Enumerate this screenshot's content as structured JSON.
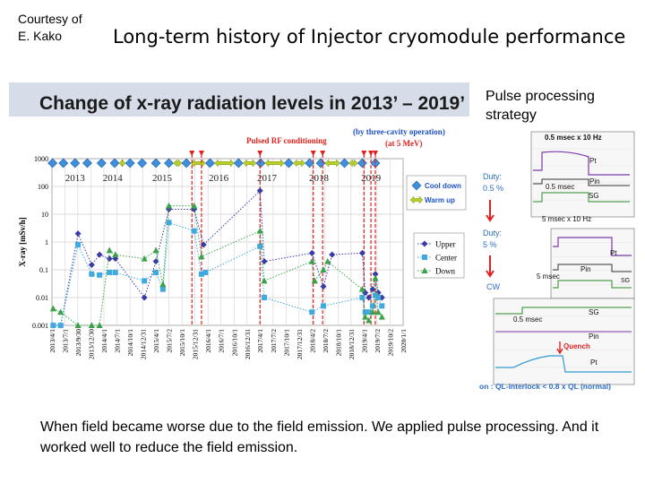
{
  "header": {
    "courtesy": "Courtesy of\nE. Kako",
    "title": "Long-term history of Injector cryomodule performance"
  },
  "side": {
    "title": "Pulse processing\nstrategy",
    "scope": {
      "top_label": "0.5 msec x 10 Hz",
      "duty1": "Duty:\n0.5 %",
      "duty2": "Duty:\n5 %",
      "cw": "CW",
      "pt": "Pt",
      "pin": "Pin",
      "sg": "SG",
      "half_msec": "0.5 msec",
      "five_msec_10hz": "5 msec x 10 Hz",
      "five_msec": "5 msec",
      "quench": "Quench",
      "footer": "on : QL-interlock < 0.8 x QL (normal)"
    }
  },
  "caption": "When field became worse due to the field emission. We applied pulse processing. And it worked well to reduce the field emission.",
  "colors": {
    "upper": "#3a3aa8",
    "center": "#3fa9e0",
    "down": "#3aa34a",
    "cooldown": "#3f8fdc",
    "warmup": "#b6cf29",
    "red": "#e0201c",
    "title_bar": "#d6dde8",
    "legend_text": "#1e50c8"
  },
  "chart_data": {
    "type": "scatter",
    "title": "Change of x-ray radiation levels in 2013’ – 2019’",
    "ylabel": "X-ray [mSv/h]",
    "yscale": "log",
    "ylim": [
      0.001,
      1000
    ],
    "xlim": [
      "2013-04-01",
      "2020-01-01"
    ],
    "grid": true,
    "y_ticks": [
      "1000",
      "100",
      "10",
      "1",
      "0.1",
      "0.01",
      "0.001"
    ],
    "x_ticks": [
      "2013/4/1",
      "2013/7/1",
      "2013/9/30",
      "2013/12/30",
      "2014/4/1",
      "2014/7/1",
      "2014/10/1",
      "2014/12/31",
      "2015/4/1",
      "2015/7/2",
      "2015/10/1",
      "2015/12/31",
      "2016/4/1",
      "2016/7/1",
      "2016/10/1",
      "2016/12/31",
      "2017/4/1",
      "2017/7/2",
      "2017/10/1",
      "2017/12/31",
      "2018/4/2",
      "2018/7/2",
      "2018/10/1",
      "2018/12/31",
      "2019/4/1",
      "2019/7/2",
      "2019/10/2",
      "2020/1/1"
    ],
    "year_labels": [
      {
        "label": "2013",
        "x": "2013-09-10"
      },
      {
        "label": "2014",
        "x": "2014-06-01"
      },
      {
        "label": "2015",
        "x": "2015-05-15"
      },
      {
        "label": "2016",
        "x": "2016-06-15"
      },
      {
        "label": "2017",
        "x": "2017-05-20"
      },
      {
        "label": "2018",
        "x": "2018-05-20"
      },
      {
        "label": "2019",
        "x": "2019-05-20"
      }
    ],
    "annotations": [
      "Pulsed RF conditioning",
      "(by three-cavity operation)",
      "(at 5 MeV)"
    ],
    "legend_placement": "right",
    "event_legend": [
      {
        "name": "Cool down",
        "marker": "diamond"
      },
      {
        "name": "Warm up",
        "marker": "double-arrow"
      }
    ],
    "cooldown_dates": [
      "2013-04-05",
      "2013-06-20",
      "2013-09-10",
      "2013-12-05",
      "2014-03-15",
      "2014-06-15",
      "2014-10-01",
      "2014-12-25",
      "2015-04-01",
      "2015-07-01",
      "2015-11-01",
      "2016-04-15",
      "2016-11-01",
      "2017-04-05",
      "2017-10-20",
      "2018-03-15",
      "2018-06-01",
      "2018-11-15",
      "2019-03-20",
      "2019-06-20"
    ],
    "pulsed_rf_dates": [
      "2015-12-10",
      "2016-02-15",
      "2017-04-01",
      "2018-04-10",
      "2018-06-15",
      "2019-04-01",
      "2019-05-20",
      "2019-06-20"
    ],
    "series": [
      {
        "name": "Upper",
        "marker": "diamond",
        "points": [
          [
            "2013-04-10",
            0.001
          ],
          [
            "2013-06-01",
            0.001
          ],
          [
            "2013-10-01",
            2
          ],
          [
            "2014-01-05",
            0.15
          ],
          [
            "2014-03-01",
            0.35
          ],
          [
            "2014-05-10",
            0.25
          ],
          [
            "2014-06-20",
            0.25
          ],
          [
            "2015-01-10",
            0.01
          ],
          [
            "2015-04-01",
            0.2
          ],
          [
            "2015-07-01",
            15
          ],
          [
            "2015-12-25",
            15
          ],
          [
            "2016-03-01",
            0.8
          ],
          [
            "2017-04-01",
            70
          ],
          [
            "2017-05-01",
            0.2
          ],
          [
            "2018-04-01",
            0.4
          ],
          [
            "2018-06-20",
            0.025
          ],
          [
            "2018-08-20",
            0.35
          ],
          [
            "2019-03-20",
            0.4
          ],
          [
            "2019-04-10",
            0.015
          ],
          [
            "2019-05-05",
            0.01
          ],
          [
            "2019-06-01",
            0.02
          ],
          [
            "2019-06-20",
            0.07
          ],
          [
            "2019-07-10",
            0.015
          ],
          [
            "2019-08-05",
            0.01
          ]
        ]
      },
      {
        "name": "Center",
        "marker": "square",
        "points": [
          [
            "2013-04-10",
            0.001
          ],
          [
            "2013-06-01",
            0.001
          ],
          [
            "2013-10-01",
            0.8
          ],
          [
            "2014-01-05",
            0.07
          ],
          [
            "2014-03-01",
            0.065
          ],
          [
            "2014-05-10",
            0.08
          ],
          [
            "2014-06-20",
            0.08
          ],
          [
            "2015-01-10",
            0.04
          ],
          [
            "2015-04-01",
            0.08
          ],
          [
            "2015-05-20",
            0.02
          ],
          [
            "2015-07-01",
            5
          ],
          [
            "2015-12-25",
            2.5
          ],
          [
            "2016-02-15",
            0.07
          ],
          [
            "2016-03-15",
            0.08
          ],
          [
            "2017-04-01",
            0.7
          ],
          [
            "2017-05-01",
            0.01
          ],
          [
            "2018-04-01",
            0.003
          ],
          [
            "2018-06-20",
            0.005
          ],
          [
            "2019-03-20",
            0.01
          ],
          [
            "2019-04-10",
            0.003
          ],
          [
            "2019-05-05",
            0.003
          ],
          [
            "2019-06-01",
            0.005
          ],
          [
            "2019-06-20",
            0.012
          ],
          [
            "2019-07-10",
            0.01
          ],
          [
            "2019-08-05",
            0.005
          ]
        ]
      },
      {
        "name": "Down",
        "marker": "triangle",
        "points": [
          [
            "2013-04-10",
            0.004
          ],
          [
            "2013-06-01",
            0.003
          ],
          [
            "2013-10-01",
            0.001
          ],
          [
            "2014-01-05",
            0.001
          ],
          [
            "2014-03-01",
            0.001
          ],
          [
            "2014-05-10",
            0.5
          ],
          [
            "2014-06-20",
            0.35
          ],
          [
            "2015-01-10",
            0.25
          ],
          [
            "2015-04-01",
            0.5
          ],
          [
            "2015-05-20",
            0.03
          ],
          [
            "2015-07-01",
            20
          ],
          [
            "2015-12-25",
            20
          ],
          [
            "2016-02-15",
            0.3
          ],
          [
            "2017-04-01",
            2.5
          ],
          [
            "2017-05-01",
            0.04
          ],
          [
            "2018-04-01",
            0.2
          ],
          [
            "2018-04-20",
            0.04
          ],
          [
            "2018-06-20",
            0.1
          ],
          [
            "2018-07-20",
            0.2
          ],
          [
            "2019-03-20",
            0.02
          ],
          [
            "2019-04-10",
            0.002
          ],
          [
            "2019-05-05",
            0.0015
          ],
          [
            "2019-06-01",
            0.003
          ],
          [
            "2019-06-20",
            0.05
          ],
          [
            "2019-07-10",
            0.003
          ],
          [
            "2019-08-05",
            0.002
          ]
        ]
      }
    ]
  }
}
